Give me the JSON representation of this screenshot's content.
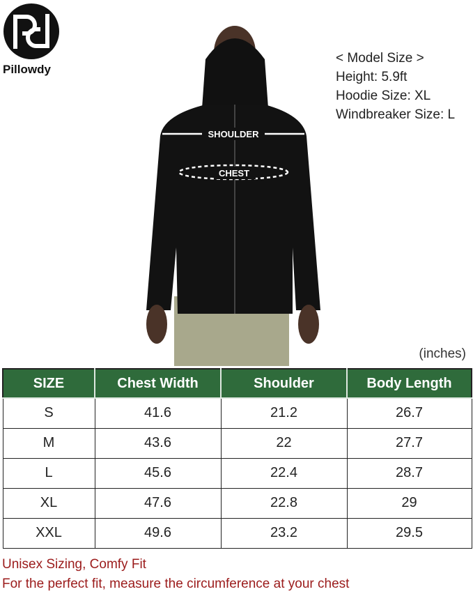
{
  "brand": {
    "name": "Pillowdy"
  },
  "model_size": {
    "title": "< Model Size >",
    "height": "Height: 5.9ft",
    "hoodie": "Hoodie Size: XL",
    "windbreaker": "Windbreaker Size: L"
  },
  "photo": {
    "shoulder_label": "SHOULDER",
    "chest_label": "CHEST"
  },
  "units": "(inches)",
  "table": {
    "headers": [
      "SIZE",
      "Chest Width",
      "Shoulder",
      "Body Length"
    ],
    "rows": [
      [
        "S",
        "41.6",
        "21.2",
        "26.7"
      ],
      [
        "M",
        "43.6",
        "22",
        "27.7"
      ],
      [
        "L",
        "45.6",
        "22.4",
        "28.7"
      ],
      [
        "XL",
        "47.6",
        "22.8",
        "29"
      ],
      [
        "XXL",
        "49.6",
        "23.2",
        "29.5"
      ]
    ],
    "header_color": "#2f6b3b"
  },
  "notes": {
    "line1": "Unisex Sizing, Comfy Fit",
    "line2": "For the perfect fit, measure the circumference at your chest"
  }
}
